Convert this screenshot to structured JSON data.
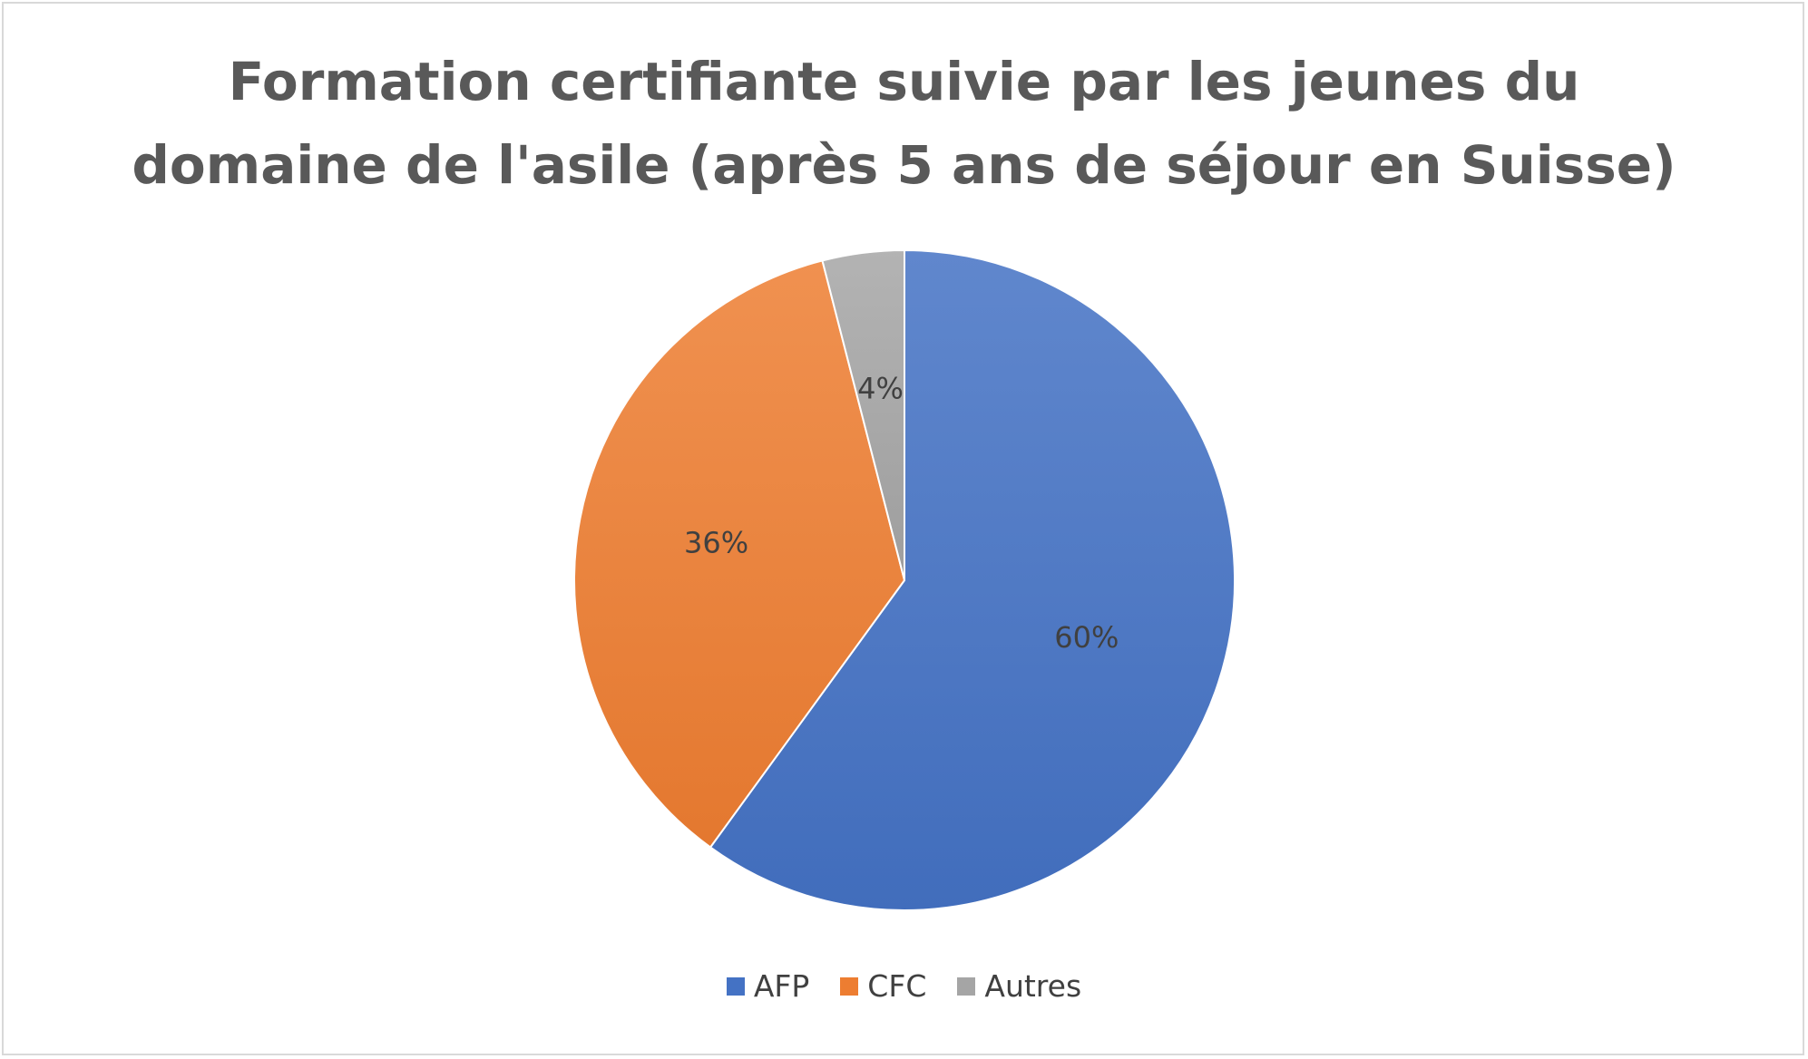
{
  "chart_data": {
    "type": "pie",
    "title": "Formation certifiante suivie par les jeunes du domaine de l'asile (après 5 ans de séjour en Suisse)",
    "title_lines": [
      "Formation certifiante suivie par les jeunes du",
      "domaine de l'asile (après 5 ans de séjour en Suisse)"
    ],
    "categories": [
      "AFP",
      "CFC",
      "Autres"
    ],
    "values": [
      60,
      36,
      4
    ],
    "labels": [
      "60%",
      "36%",
      "4%"
    ],
    "colors": [
      "#4472c4",
      "#ed7d31",
      "#a5a5a5"
    ],
    "legend_position": "bottom",
    "start_angle": "top, clockwise"
  }
}
